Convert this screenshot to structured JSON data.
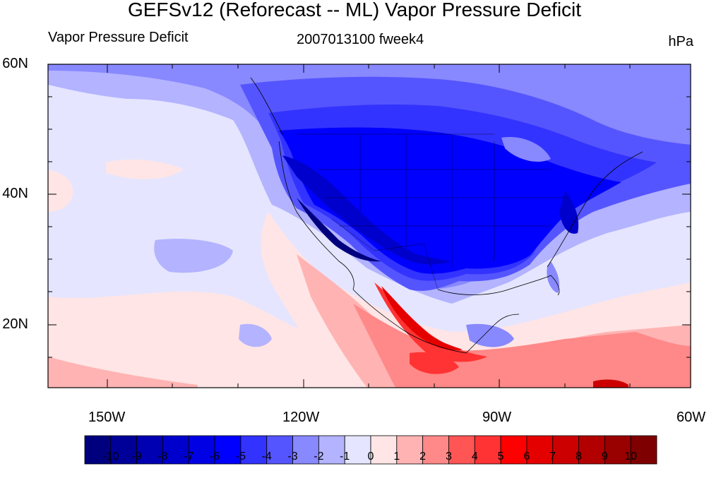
{
  "title": "GEFSv12 (Reforecast -- ML) Vapor Pressure Deficit",
  "subtitle_left": "Vapor Pressure Deficit",
  "subtitle_center": "2007013100 fweek4",
  "subtitle_right": "hPa",
  "lat_labels": [
    "60N",
    "40N",
    "20N"
  ],
  "lon_labels": [
    "150W",
    "120W",
    "90W",
    "60W"
  ],
  "colorbar": {
    "labels": [
      "-10",
      "-9",
      "-8",
      "-7",
      "-6",
      "-5",
      "-4",
      "-3",
      "-2",
      "-1",
      "0",
      "1",
      "2",
      "3",
      "4",
      "5",
      "6",
      "7",
      "8",
      "9",
      "10"
    ],
    "colors": [
      "#00007f",
      "#000099",
      "#0000b2",
      "#0000cc",
      "#0000e5",
      "#0000ff",
      "#3333ff",
      "#5555ff",
      "#8888ff",
      "#b3b3ff",
      "#e5e5ff",
      "#ffe5e5",
      "#ffb3b3",
      "#ff8888",
      "#ff5555",
      "#ff3333",
      "#ff0000",
      "#e50000",
      "#cc0000",
      "#b20000",
      "#990000",
      "#7f0000"
    ]
  },
  "map_colors": {
    "ocean_neutral": "#e5e5ff",
    "light_blue": "#b3b3ff",
    "mid_blue": "#8888ff",
    "blue": "#5555ff",
    "strong_blue": "#3333ff",
    "deep_blue": "#0000ff",
    "darker_blue": "#0000cc",
    "darkest_blue": "#00007f",
    "pale_red": "#ffe5e5",
    "light_red": "#ffb3b3",
    "red": "#ff5555",
    "strong_red": "#ff0000"
  }
}
